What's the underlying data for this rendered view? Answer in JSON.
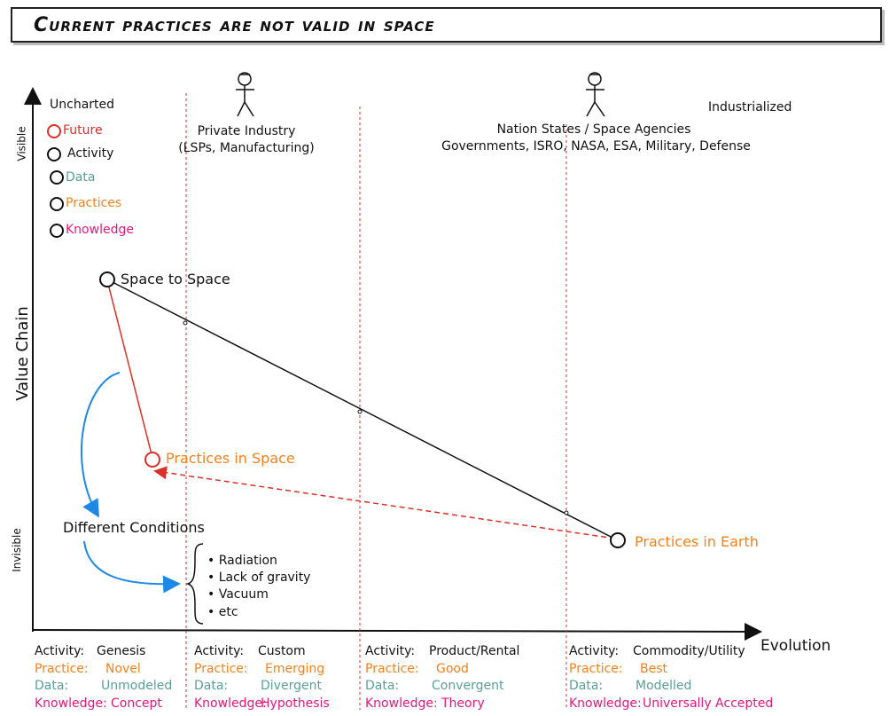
{
  "title": "Current practices are not valid in space",
  "axes": {
    "y_label": "Value Chain",
    "y_top": "Visible",
    "y_bottom": "Invisible",
    "x_label": "Evolution"
  },
  "corners": {
    "left": "Uncharted",
    "right": "Industrialized"
  },
  "legend": [
    {
      "label": "Future",
      "color": "#d9312a"
    },
    {
      "label": "Activity",
      "color": "#111111"
    },
    {
      "label": "Data",
      "color": "#5a9e96"
    },
    {
      "label": "Practices",
      "color": "#f0821e"
    },
    {
      "label": "Knowledge",
      "color": "#e0197d"
    }
  ],
  "actors": [
    {
      "name": "Private Industry",
      "detail": "(LSPs, Manufacturing)"
    },
    {
      "name": "Nation States / Space Agencies",
      "detail": "Governments, ISRO, NASA, ESA, Military, Defense"
    }
  ],
  "nodes": {
    "space_to_space": "Space to Space",
    "practices_in_space": "Practices in Space",
    "practices_in_earth": "Practices in Earth",
    "different_conditions": "Different Conditions"
  },
  "conditions": [
    "Radiation",
    "Lack of gravity",
    "Vacuum",
    "etc"
  ],
  "stages": [
    {
      "activity": "Genesis",
      "practice": "Novel",
      "data": "Unmodeled",
      "knowledge": "Concept"
    },
    {
      "activity": "Custom",
      "practice": "Emerging",
      "data": "Divergent",
      "knowledge": "Hypothesis"
    },
    {
      "activity": "Product/Rental",
      "practice": "Good",
      "data": "Convergent",
      "knowledge": "Theory"
    },
    {
      "activity": "Commodity/Utility",
      "practice": "Best",
      "data": "Modelled",
      "knowledge": "Universally Accepted"
    }
  ],
  "stage_keys": {
    "activity": "Activity:",
    "practice": "Practice:",
    "data": "Data:",
    "knowledge": "Knowledge:"
  },
  "colors": {
    "future": "#d9312a",
    "practice": "#f0821e",
    "data": "#5a9e96",
    "knowledge": "#e0197d",
    "arrow_blue": "#1e88e5"
  }
}
